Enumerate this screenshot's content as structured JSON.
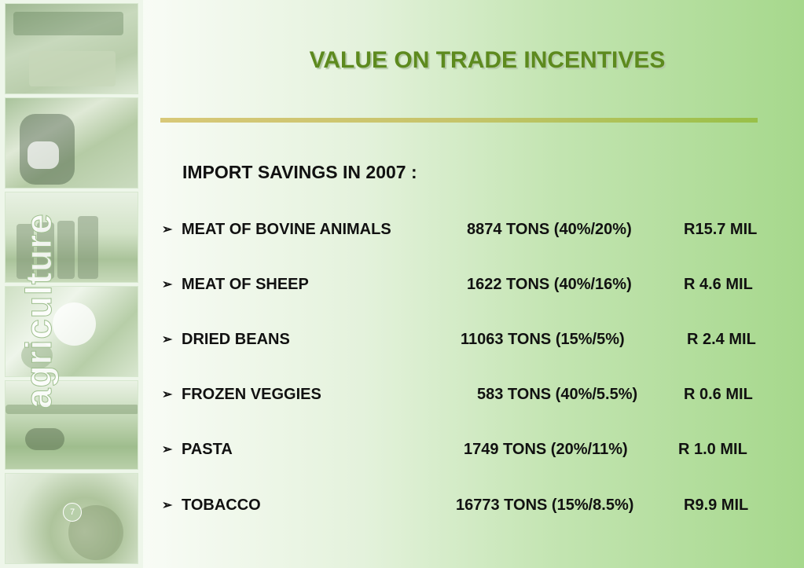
{
  "title": "VALUE ON TRADE INCENTIVES",
  "subtitle": "IMPORT SAVINGS IN 2007 :",
  "sidebar": {
    "wordmark": "agriculture",
    "page_number": "7"
  },
  "accent_color": "#5d8a1e",
  "items": [
    {
      "name": "MEAT OF BOVINE ANIMALS",
      "tons": "8874 TONS  (40%/20%)",
      "value": "R15.7 MIL"
    },
    {
      "name": "MEAT OF SHEEP",
      "tons": "1622 TONS (40%/16%)",
      "value": "R 4.6 MIL"
    },
    {
      "name": "DRIED BEANS",
      "tons": "11063 TONS (15%/5%)",
      "value": "R 2.4 MIL"
    },
    {
      "name": "FROZEN VEGGIES",
      "tons": "583 TONS (40%/5.5%)",
      "value": "R 0.6 MIL"
    },
    {
      "name": "PASTA",
      "tons": "1749 TONS (20%/11%)",
      "value": "R 1.0 MIL"
    },
    {
      "name": "TOBACCO",
      "tons": "16773 TONS (15%/8.5%)",
      "value": "R9.9 MIL"
    }
  ]
}
